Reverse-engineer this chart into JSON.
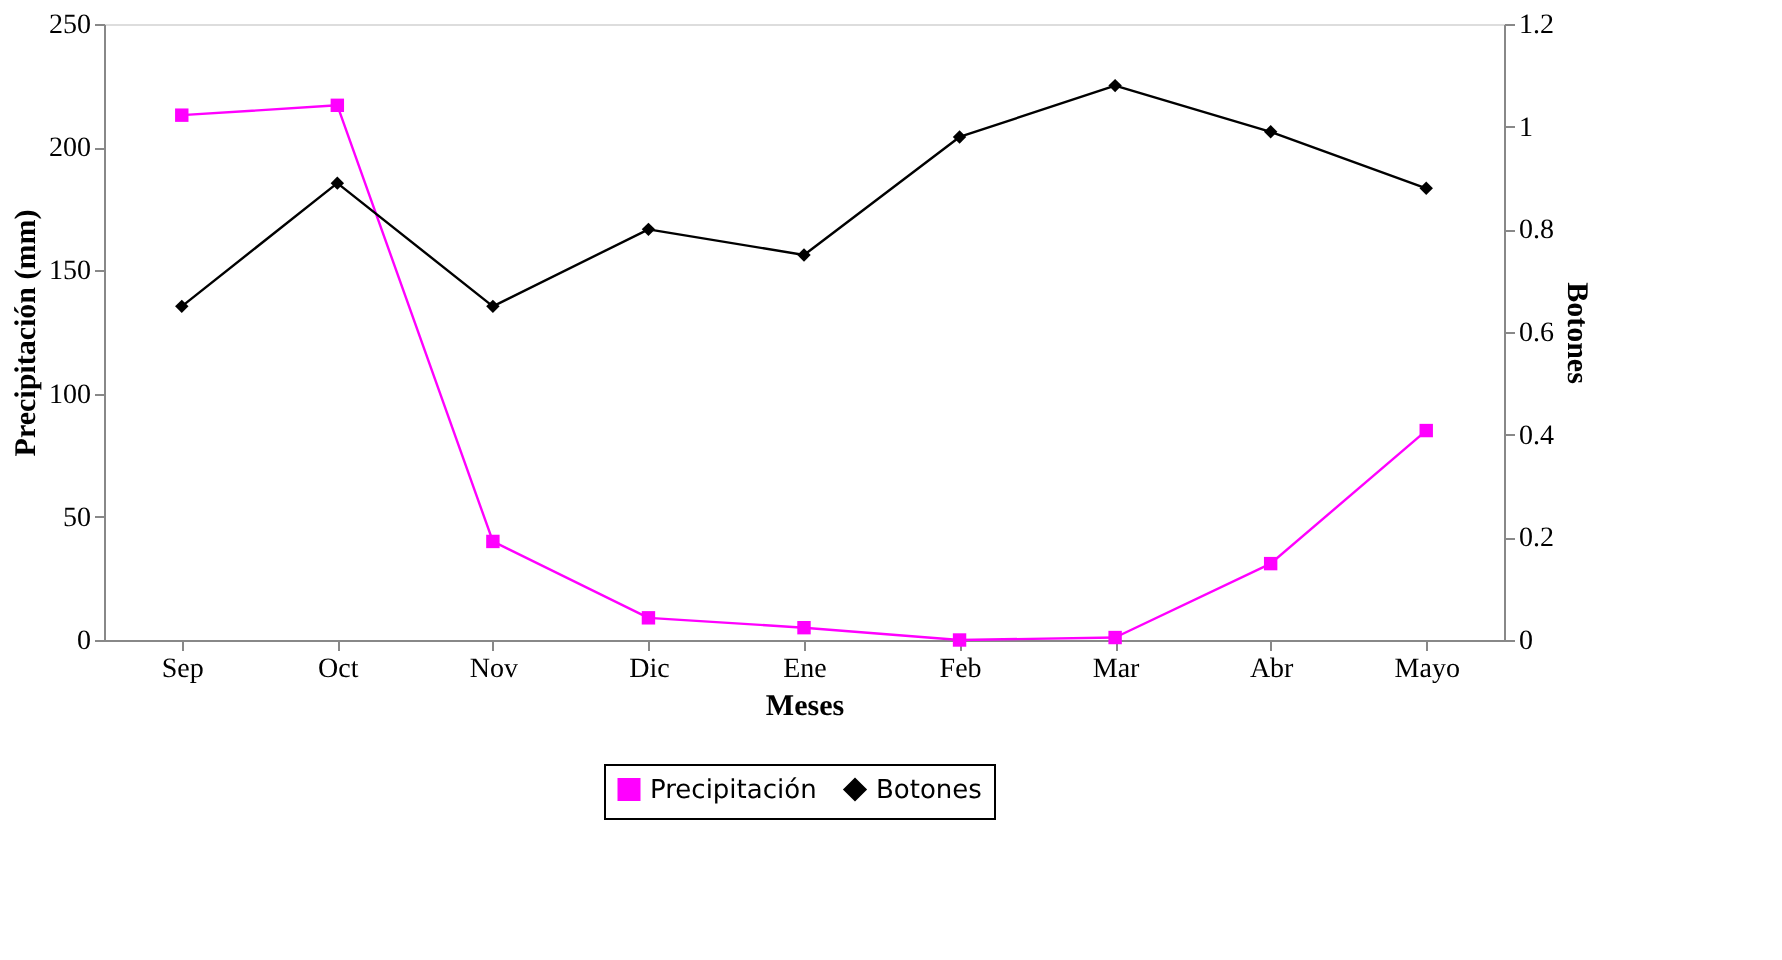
{
  "chart_data": {
    "type": "line",
    "xlabel": "Meses",
    "ylabel": "Precipitación (mm)",
    "y2label": "Botones",
    "categories": [
      "Sep",
      "Oct",
      "Nov",
      "Dic",
      "Ene",
      "Feb",
      "Mar",
      "Abr",
      "Mayo"
    ],
    "series": [
      {
        "name": "Precipitación",
        "color": "#ff00ff",
        "marker": "square",
        "values": [
          213,
          217,
          40,
          9,
          5,
          0,
          1,
          31,
          85
        ]
      },
      {
        "name": "Botones",
        "color": "#000000",
        "marker": "diamond",
        "axis": "y2",
        "values": [
          0.65,
          0.89,
          0.65,
          0.8,
          0.75,
          0.98,
          1.08,
          0.99,
          0.88
        ]
      }
    ],
    "ylim": [
      0,
      250
    ],
    "yticks": [
      0,
      50,
      100,
      150,
      200,
      250
    ],
    "y2lim": [
      0,
      1.2
    ],
    "y2ticks": [
      0,
      0.2,
      0.4,
      0.6,
      0.8,
      1,
      1.2
    ],
    "grid": false,
    "legend": "bottom",
    "line_style": "solid"
  }
}
